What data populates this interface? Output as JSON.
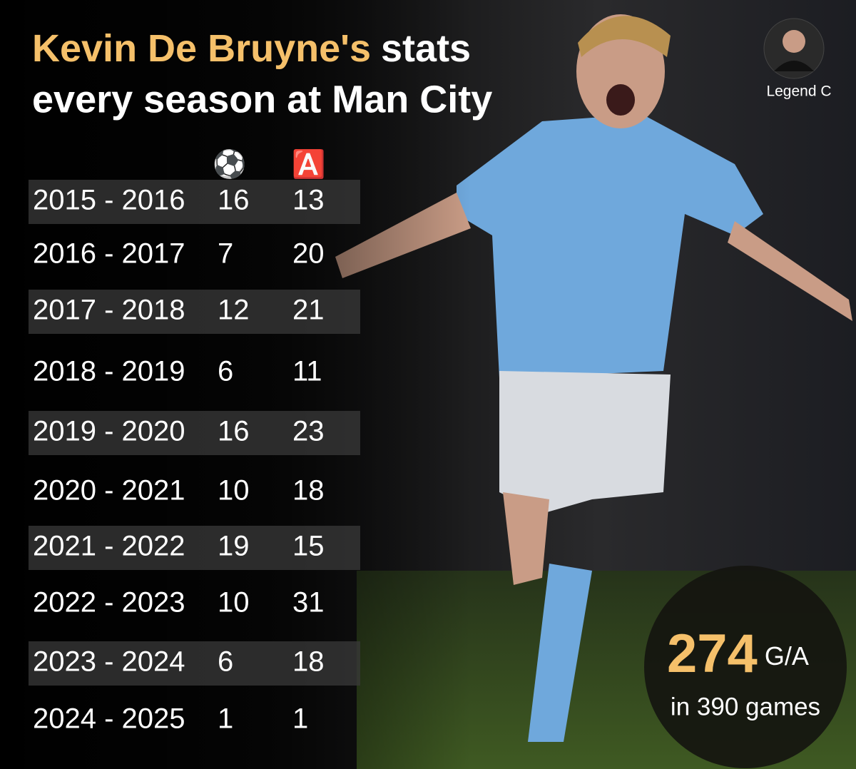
{
  "title": {
    "highlight": "Kevin De Bruyne's",
    "rest": "stats",
    "line2": "every season at Man City"
  },
  "author": "Legend C",
  "columns": [
    "⚽",
    "🅰️"
  ],
  "rows": [
    [
      "2015 - 2016",
      16,
      13
    ],
    [
      "2016 - 2017",
      7,
      20
    ],
    [
      "2017 - 2018",
      12,
      21
    ],
    [
      "2018 - 2019",
      6,
      11
    ],
    [
      "2019 - 2020",
      16,
      23
    ],
    [
      "2020 - 2021",
      10,
      18
    ],
    [
      "2021 - 2022",
      19,
      15
    ],
    [
      "2022 - 2023",
      10,
      31
    ],
    [
      "2023 - 2024",
      6,
      18
    ],
    [
      "2024 - 2025",
      1,
      1
    ]
  ],
  "total": {
    "value": 274,
    "unit": "G/A",
    "caption": "in 390 games"
  }
}
